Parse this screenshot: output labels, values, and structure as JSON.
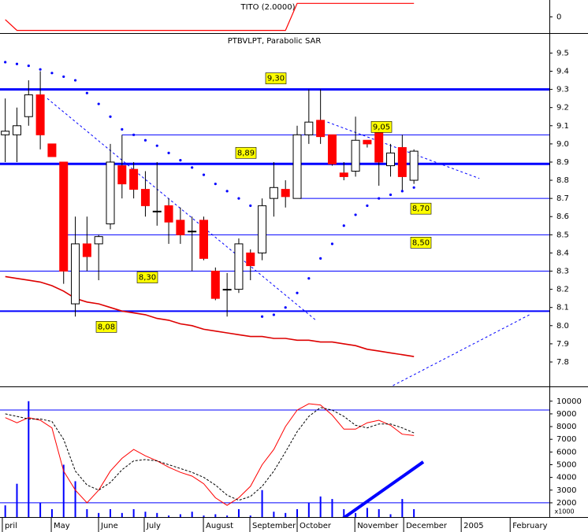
{
  "chart_data": [
    {
      "type": "line",
      "title": "TITO (2.0000)",
      "xlim": [
        -0.45,
        46.6
      ],
      "ylim": [
        -1.2,
        1.25
      ],
      "yticks": [
        0
      ],
      "color": "#ff0000",
      "values": [
        -0.2,
        -1,
        -1,
        -1,
        -1,
        -1,
        -1,
        -1,
        -1,
        -1,
        -1,
        -1,
        -1,
        -1,
        -1,
        -1,
        -1,
        -1,
        -1,
        -1,
        -1,
        -1,
        -1,
        -1,
        -1,
        1,
        1,
        1,
        1,
        1,
        1,
        1,
        1,
        1,
        1,
        1
      ]
    },
    {
      "type": "candlestick",
      "title": "PTBVLPT, Parabolic SAR",
      "xlim": [
        -0.45,
        46.6
      ],
      "ylim": [
        7.67,
        9.61
      ],
      "yticks": [
        7.8,
        7.9,
        {
          "value": 8,
          "label": "8.0"
        },
        8.1,
        8.2,
        8.3,
        8.4,
        8.5,
        8.6,
        8.7,
        8.8,
        8.9,
        {
          "value": 9,
          "label": "9.0"
        },
        9.1,
        9.2,
        9.3,
        9.4,
        9.5
      ],
      "up_color": "#ffffff",
      "down_color": "#ff0000",
      "open": [
        9.05,
        9.05,
        9.15,
        9.27,
        9.0,
        8.9,
        8.12,
        8.45,
        8.45,
        8.56,
        8.88,
        8.86,
        8.75,
        8.63,
        8.66,
        8.58,
        8.52,
        8.58,
        8.3,
        8.2,
        8.2,
        8.4,
        8.4,
        8.7,
        8.75,
        8.7,
        9.05,
        9.13,
        9.05,
        8.84,
        8.85,
        9.02,
        9.06,
        8.88,
        8.98,
        8.8
      ],
      "high": [
        9.25,
        9.2,
        9.35,
        9.4,
        9.0,
        8.9,
        8.6,
        8.6,
        8.5,
        9.0,
        9.05,
        8.9,
        8.85,
        8.9,
        8.7,
        8.65,
        8.6,
        8.6,
        8.32,
        8.29,
        8.48,
        8.42,
        8.7,
        8.9,
        8.8,
        9.1,
        9.3,
        9.3,
        9.05,
        8.9,
        9.15,
        9.02,
        9.07,
        9.0,
        9.05,
        8.97
      ],
      "low": [
        8.9,
        8.9,
        9.1,
        8.97,
        8.93,
        8.23,
        8.05,
        8.3,
        8.25,
        8.53,
        8.7,
        8.7,
        8.6,
        8.55,
        8.45,
        8.45,
        8.3,
        8.36,
        8.14,
        8.05,
        8.18,
        8.25,
        8.36,
        8.6,
        8.65,
        8.7,
        9.0,
        9.0,
        8.88,
        8.8,
        8.82,
        8.98,
        8.77,
        8.82,
        8.74,
        8.78
      ],
      "close": [
        9.07,
        9.1,
        9.27,
        9.05,
        8.93,
        8.3,
        8.45,
        8.38,
        8.49,
        8.9,
        8.78,
        8.75,
        8.66,
        8.63,
        8.57,
        8.5,
        8.52,
        8.37,
        8.15,
        8.2,
        8.45,
        8.33,
        8.66,
        8.76,
        8.71,
        9.05,
        9.12,
        9.04,
        8.89,
        8.82,
        9.02,
        9.0,
        8.9,
        8.95,
        8.82,
        8.96
      ],
      "sar": {
        "color": "#0000ff",
        "values": [
          9.45,
          9.44,
          9.43,
          9.41,
          9.39,
          9.37,
          9.35,
          9.28,
          9.22,
          9.15,
          9.08,
          9.05,
          9.02,
          8.99,
          8.95,
          8.91,
          8.87,
          8.83,
          8.78,
          8.74,
          8.7,
          8.66,
          8.05,
          8.06,
          8.1,
          8.18,
          8.26,
          8.37,
          8.45,
          8.55,
          8.61,
          8.66,
          8.7,
          8.72,
          8.74,
          8.76
        ]
      },
      "ma": {
        "color": "#dd0000",
        "values": [
          8.27,
          8.26,
          8.25,
          8.24,
          8.22,
          8.19,
          8.15,
          8.13,
          8.12,
          8.1,
          8.08,
          8.07,
          8.06,
          8.04,
          8.03,
          8.01,
          8.0,
          7.98,
          7.97,
          7.96,
          7.95,
          7.94,
          7.94,
          7.93,
          7.93,
          7.92,
          7.92,
          7.91,
          7.91,
          7.9,
          7.89,
          7.87,
          7.86,
          7.85,
          7.84,
          7.83
        ]
      },
      "levels": [
        {
          "value": 9.3,
          "label": "9,30"
        },
        {
          "value": 8.89,
          "label": "8,89"
        },
        {
          "value": 9.05,
          "label": "9,05"
        },
        {
          "value": 8.7,
          "label": "8,70"
        },
        {
          "value": 8.5,
          "label": "8,50"
        },
        {
          "value": 8.3,
          "label": "8,30"
        },
        {
          "value": 8.08,
          "label": "8,08"
        }
      ],
      "trendlines": [
        {
          "x": [
            3.6,
            26.6
          ],
          "y": [
            9.25,
            8.03
          ]
        },
        {
          "x": [
            27.6,
            40.6
          ],
          "y": [
            9.12,
            8.81
          ]
        },
        {
          "x": [
            33.2,
            44.9
          ],
          "y": [
            7.67,
            8.06
          ]
        }
      ]
    },
    {
      "type": "bar",
      "xlim": [
        -0.45,
        46.6
      ],
      "ylim": [
        880,
        11100
      ],
      "yticks": [
        2000,
        3000,
        4000,
        5000,
        6000,
        7000,
        8000,
        9000,
        10000
      ],
      "axis_label": "x1000",
      "color": "#0000ff",
      "values": [
        1800,
        3500,
        10000,
        2000,
        1500,
        5000,
        3700,
        1500,
        1200,
        1500,
        1200,
        1500,
        1300,
        1200,
        1000,
        1100,
        1300,
        1000,
        1100,
        1000,
        1500,
        1000,
        3000,
        1300,
        1200,
        1500,
        2000,
        2500,
        2300,
        1500,
        1200,
        1600,
        1500,
        1100,
        2300,
        1500
      ],
      "lines": [
        {
          "color": "#ff0000",
          "dashed": false,
          "values": [
            8700,
            8300,
            8700,
            8500,
            7900,
            4500,
            3000,
            2000,
            3000,
            4500,
            5500,
            6200,
            5700,
            5300,
            4800,
            4400,
            4100,
            3500,
            2400,
            1800,
            2400,
            3300,
            5000,
            6200,
            8000,
            9300,
            9800,
            9700,
            8900,
            7800,
            7800,
            8300,
            8500,
            8100,
            7400,
            7300
          ]
        },
        {
          "color": "#000000",
          "dashed": true,
          "values": [
            9000,
            8800,
            8600,
            8600,
            8400,
            7000,
            4500,
            3400,
            3000,
            3600,
            4600,
            5300,
            5400,
            5300,
            5000,
            4700,
            4400,
            4000,
            3400,
            2600,
            2200,
            2500,
            3300,
            4500,
            6000,
            7600,
            8800,
            9500,
            9300,
            8800,
            8100,
            7900,
            8200,
            8200,
            7900,
            7500
          ]
        }
      ],
      "levels": [
        9300,
        2000
      ],
      "trendline": {
        "x": [
          28.6,
          35.8
        ],
        "y": [
          560,
          5220
        ]
      },
      "xticks": [
        {
          "value": -0.25,
          "label": "pril"
        },
        {
          "value": 3.94,
          "label": "May"
        },
        {
          "value": 7.99,
          "label": "June"
        },
        {
          "value": 11.9,
          "label": "July"
        },
        {
          "value": 16.97,
          "label": "August"
        },
        {
          "value": 20.95,
          "label": "September"
        },
        {
          "value": 25.0,
          "label": "October"
        },
        {
          "value": 29.94,
          "label": "November"
        },
        {
          "value": 34.12,
          "label": "December"
        },
        {
          "value": 39.05,
          "label": "2005"
        },
        {
          "value": 43.24,
          "label": "February"
        }
      ]
    }
  ]
}
